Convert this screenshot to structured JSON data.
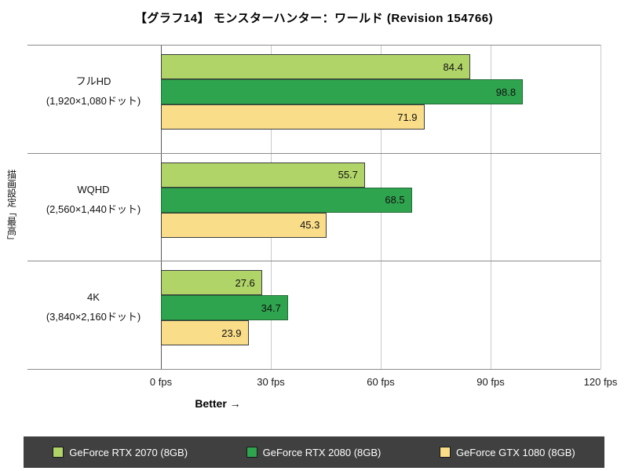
{
  "chart_data": {
    "type": "bar",
    "orientation": "horizontal",
    "title": "【グラフ14】 モンスターハンター：ワールド (Revision 154766)",
    "y_axis_label": "描画設定「最高」",
    "better_label": "Better →",
    "unit": "fps",
    "categories": [
      {
        "label": "フルHD",
        "sublabel": "(1,920×1,080ドット)"
      },
      {
        "label": "WQHD",
        "sublabel": "(2,560×1,440ドット)"
      },
      {
        "label": "4K",
        "sublabel": "(3,840×2,160ドット)"
      }
    ],
    "series": [
      {
        "name": "GeForce RTX 2070 (8GB)",
        "color": "#b0d468",
        "border": "#3c3c3c",
        "values": [
          84.4,
          55.7,
          27.6
        ]
      },
      {
        "name": "GeForce RTX 2080 (8GB)",
        "color": "#2fa44e",
        "border": "#256b38",
        "values": [
          98.8,
          68.5,
          34.7
        ]
      },
      {
        "name": "GeForce GTX 1080 (8GB)",
        "color": "#f9dd89",
        "border": "#3c3c3c",
        "values": [
          71.9,
          45.3,
          23.9
        ]
      }
    ],
    "xlim": [
      0,
      120
    ],
    "x_ticks": [
      "0 fps",
      "30 fps",
      "60 fps",
      "90 fps",
      "120 fps"
    ],
    "x_tick_values": [
      0,
      30,
      60,
      90,
      120
    ],
    "grid": true,
    "legend_position": "bottom",
    "legend_background": "#404040"
  }
}
